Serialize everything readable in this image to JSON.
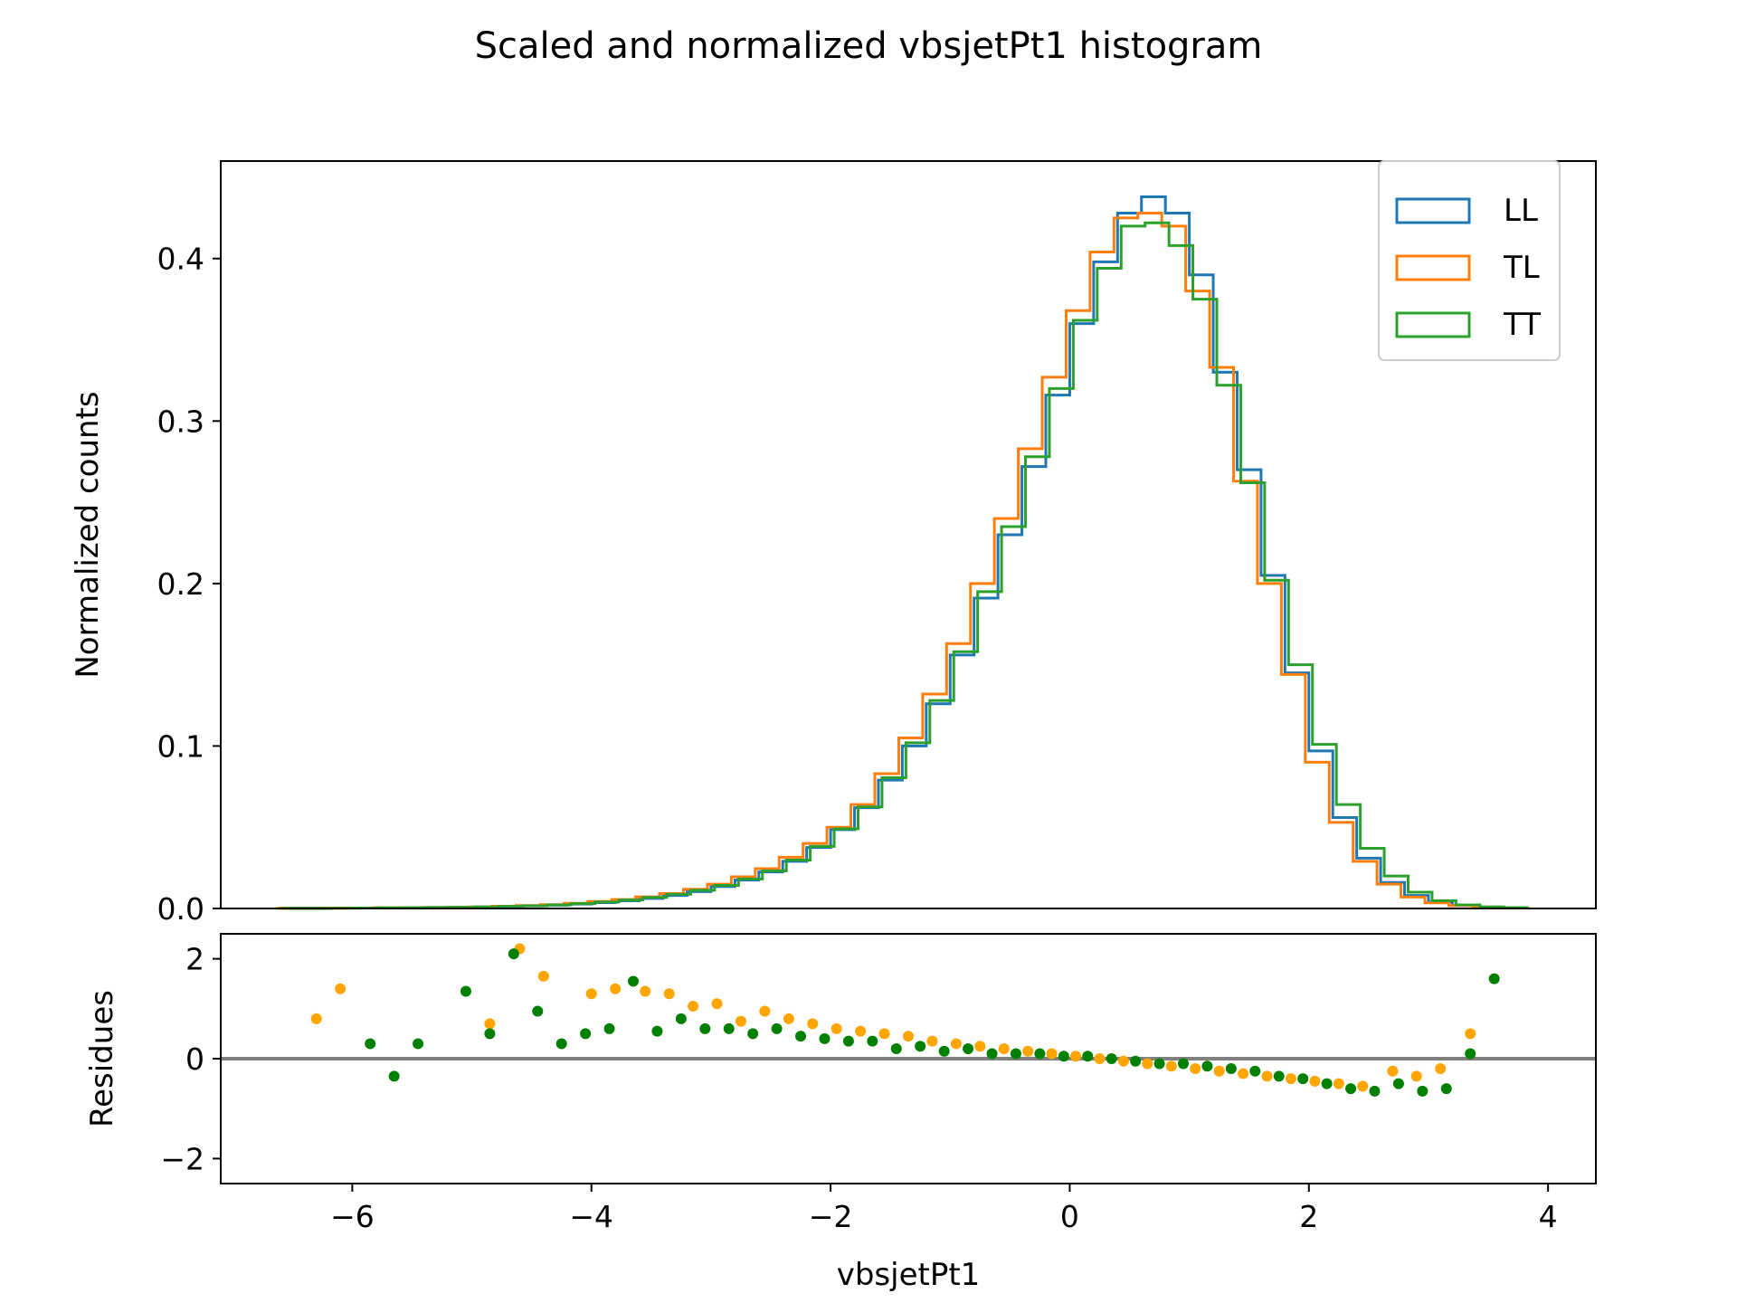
{
  "chart_data": [
    {
      "type": "step",
      "title": "Scaled and normalized vbsjetPt1 histogram",
      "xlabel": "",
      "ylabel": "Normalized counts",
      "xlim": [
        -7.1,
        4.4
      ],
      "ylim": [
        0.0,
        0.46
      ],
      "yticks": [
        0.0,
        0.1,
        0.2,
        0.3,
        0.4
      ],
      "ytick_labels": [
        "0.0",
        "0.1",
        "0.2",
        "0.3",
        "0.4"
      ],
      "legend": {
        "position": "upper right",
        "entries": [
          "LL",
          "TL",
          "TT"
        ]
      },
      "bin_edges": [
        -6.6,
        -6.4,
        -6.2,
        -6.0,
        -5.8,
        -5.6,
        -5.4,
        -5.2,
        -5.0,
        -4.8,
        -4.6,
        -4.4,
        -4.2,
        -4.0,
        -3.8,
        -3.6,
        -3.4,
        -3.2,
        -3.0,
        -2.8,
        -2.6,
        -2.4,
        -2.2,
        -2.0,
        -1.8,
        -1.6,
        -1.4,
        -1.2,
        -1.0,
        -0.8,
        -0.6,
        -0.4,
        -0.2,
        0.0,
        0.2,
        0.4,
        0.6,
        0.8,
        1.0,
        1.2,
        1.4,
        1.6,
        1.8,
        2.0,
        2.2,
        2.4,
        2.6,
        2.8,
        3.0,
        3.2,
        3.4,
        3.6,
        3.8
      ],
      "series": [
        {
          "name": "LL",
          "color": "#1f77b4",
          "offset": 0.0,
          "values": [
            0.0002,
            0.0002,
            0.0003,
            0.0003,
            0.0004,
            0.0005,
            0.0006,
            0.0008,
            0.001,
            0.0013,
            0.0016,
            0.002,
            0.0027,
            0.0036,
            0.0047,
            0.0062,
            0.008,
            0.0104,
            0.0135,
            0.0175,
            0.0225,
            0.029,
            0.0375,
            0.0485,
            0.062,
            0.079,
            0.1,
            0.126,
            0.156,
            0.191,
            0.23,
            0.272,
            0.316,
            0.36,
            0.398,
            0.428,
            0.438,
            0.428,
            0.39,
            0.33,
            0.27,
            0.205,
            0.145,
            0.097,
            0.056,
            0.031,
            0.016,
            0.008,
            0.004,
            0.002,
            0.0009,
            0.0005
          ]
        },
        {
          "name": "TL",
          "color": "#ff7f0e",
          "offset": -0.03,
          "values": [
            0.0001,
            0.0001,
            0.0002,
            0.0003,
            0.0004,
            0.0005,
            0.0006,
            0.0008,
            0.001,
            0.0014,
            0.0018,
            0.0024,
            0.0032,
            0.0043,
            0.0055,
            0.0072,
            0.0092,
            0.0118,
            0.015,
            0.0195,
            0.0245,
            0.0315,
            0.04,
            0.05,
            0.064,
            0.083,
            0.105,
            0.132,
            0.163,
            0.2,
            0.24,
            0.283,
            0.327,
            0.368,
            0.404,
            0.425,
            0.428,
            0.42,
            0.38,
            0.333,
            0.263,
            0.2,
            0.144,
            0.09,
            0.053,
            0.029,
            0.015,
            0.007,
            0.0035,
            0.0018,
            0.0009,
            0.0004
          ]
        },
        {
          "name": "TT",
          "color": "#2ca02c",
          "offset": 0.03,
          "values": [
            0.0001,
            0.0001,
            0.0002,
            0.0003,
            0.0004,
            0.0005,
            0.0006,
            0.0008,
            0.001,
            0.0013,
            0.0017,
            0.0022,
            0.003,
            0.004,
            0.0052,
            0.0068,
            0.0088,
            0.0112,
            0.0142,
            0.0182,
            0.0232,
            0.0298,
            0.0382,
            0.049,
            0.0625,
            0.0805,
            0.102,
            0.128,
            0.158,
            0.195,
            0.235,
            0.278,
            0.32,
            0.362,
            0.394,
            0.42,
            0.422,
            0.408,
            0.375,
            0.322,
            0.262,
            0.202,
            0.15,
            0.101,
            0.064,
            0.037,
            0.02,
            0.01,
            0.0048,
            0.0022,
            0.001,
            0.0005
          ]
        }
      ]
    },
    {
      "type": "scatter",
      "title": "",
      "xlabel": "vbsjetPt1",
      "ylabel": "Residues",
      "xlim": [
        -7.1,
        4.4
      ],
      "ylim": [
        -2.5,
        2.5
      ],
      "xticks": [
        -6,
        -4,
        -2,
        0,
        2,
        4
      ],
      "xtick_labels": [
        "−6",
        "−4",
        "−2",
        "0",
        "2",
        "4"
      ],
      "yticks": [
        -2,
        0,
        2
      ],
      "ytick_labels": [
        "−2",
        "0",
        "2"
      ],
      "reference_line": {
        "y": 0,
        "color": "#808080"
      },
      "series": [
        {
          "name": "TL",
          "color": "#ffa500",
          "x": [
            -6.3,
            -6.1,
            -4.85,
            -4.6,
            -4.4,
            -4.0,
            -3.8,
            -3.55,
            -3.35,
            -3.15,
            -2.95,
            -2.75,
            -2.55,
            -2.35,
            -2.15,
            -1.95,
            -1.75,
            -1.55,
            -1.35,
            -1.15,
            -0.95,
            -0.75,
            -0.55,
            -0.35,
            -0.15,
            0.05,
            0.25,
            0.45,
            0.65,
            0.85,
            1.05,
            1.25,
            1.45,
            1.65,
            1.85,
            2.05,
            2.25,
            2.45,
            2.7,
            2.9,
            3.1,
            3.35
          ],
          "y": [
            0.8,
            1.4,
            0.7,
            2.2,
            1.65,
            1.3,
            1.4,
            1.35,
            1.3,
            1.05,
            1.1,
            0.75,
            0.95,
            0.8,
            0.7,
            0.6,
            0.55,
            0.5,
            0.45,
            0.35,
            0.3,
            0.25,
            0.2,
            0.15,
            0.1,
            0.05,
            0.0,
            -0.05,
            -0.1,
            -0.15,
            -0.2,
            -0.25,
            -0.3,
            -0.35,
            -0.4,
            -0.45,
            -0.5,
            -0.55,
            -0.25,
            -0.35,
            -0.2,
            0.5
          ]
        },
        {
          "name": "TT",
          "color": "#008000",
          "x": [
            -5.85,
            -5.65,
            -5.45,
            -5.05,
            -4.85,
            -4.65,
            -4.45,
            -4.25,
            -4.05,
            -3.85,
            -3.65,
            -3.45,
            -3.25,
            -3.05,
            -2.85,
            -2.65,
            -2.45,
            -2.25,
            -2.05,
            -1.85,
            -1.65,
            -1.45,
            -1.25,
            -1.05,
            -0.85,
            -0.65,
            -0.45,
            -0.25,
            -0.05,
            0.15,
            0.35,
            0.55,
            0.75,
            0.95,
            1.15,
            1.35,
            1.55,
            1.75,
            1.95,
            2.15,
            2.35,
            2.55,
            2.75,
            2.95,
            3.15,
            3.35,
            3.55
          ],
          "y": [
            0.3,
            -0.35,
            0.3,
            1.35,
            0.5,
            2.1,
            0.95,
            0.3,
            0.5,
            0.6,
            1.55,
            0.55,
            0.8,
            0.6,
            0.6,
            0.5,
            0.6,
            0.45,
            0.4,
            0.35,
            0.35,
            0.2,
            0.25,
            0.15,
            0.2,
            0.1,
            0.1,
            0.1,
            0.05,
            0.05,
            0.0,
            -0.05,
            -0.1,
            -0.1,
            -0.15,
            -0.2,
            -0.25,
            -0.35,
            -0.4,
            -0.5,
            -0.6,
            -0.65,
            -0.5,
            -0.65,
            -0.6,
            0.1,
            1.6
          ]
        }
      ]
    }
  ]
}
